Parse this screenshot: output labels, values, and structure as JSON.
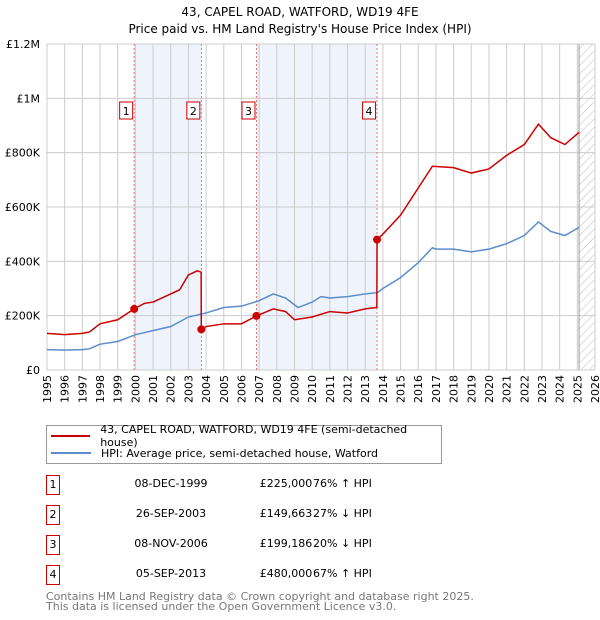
{
  "title": "43, CAPEL ROAD, WATFORD, WD19 4FE",
  "subtitle": "Price paid vs. HM Land Registry's House Price Index (HPI)",
  "colors": {
    "property": "#cc0000",
    "hpi": "#5b8ccc",
    "shade": "#eef3fc"
  },
  "chart_data": {
    "type": "line",
    "title": "43, CAPEL ROAD, WATFORD, WD19 4FE",
    "xlim": [
      1995,
      2026
    ],
    "ylim": [
      0,
      1200000
    ],
    "yticks": [
      {
        "v": 0,
        "label": "£0"
      },
      {
        "v": 200000,
        "label": "£200K"
      },
      {
        "v": 400000,
        "label": "£400K"
      },
      {
        "v": 600000,
        "label": "£600K"
      },
      {
        "v": 800000,
        "label": "£800K"
      },
      {
        "v": 1000000,
        "label": "£1M"
      },
      {
        "v": 1200000,
        "label": "£1.2M"
      }
    ],
    "xticks": [
      "1995",
      "1996",
      "1997",
      "1998",
      "1999",
      "2000",
      "2001",
      "2002",
      "2003",
      "2004",
      "2005",
      "2006",
      "2007",
      "2008",
      "2009",
      "2010",
      "2011",
      "2012",
      "2013",
      "2014",
      "2015",
      "2016",
      "2017",
      "2018",
      "2019",
      "2020",
      "2021",
      "2022",
      "2023",
      "2024",
      "2025",
      "2026"
    ],
    "data_end": 2025.1,
    "series": [
      {
        "name": "43, CAPEL ROAD, WATFORD, WD19 4FE (semi-detached house)",
        "color": "#cc0000",
        "x": [
          1995,
          1996,
          1997,
          1997.4,
          1998,
          1999,
          1999.93,
          2000.5,
          2001,
          2002,
          2002.5,
          2003,
          2003.5,
          2003.72,
          2003.73,
          2004,
          2005,
          2006,
          2006.85,
          2007.8,
          2008.5,
          2009,
          2010,
          2011,
          2012,
          2013,
          2013.66,
          2013.67,
          2014,
          2015,
          2016,
          2016.8,
          2018,
          2019,
          2020,
          2021,
          2022,
          2022.8,
          2023.5,
          2024.3,
          2025.1
        ],
        "y": [
          135000,
          130000,
          135000,
          140000,
          170000,
          185000,
          225000,
          245000,
          250000,
          280000,
          295000,
          350000,
          365000,
          360000,
          149663,
          160000,
          170000,
          170000,
          199186,
          225000,
          215000,
          185000,
          195000,
          215000,
          210000,
          225000,
          230000,
          480000,
          500000,
          570000,
          670000,
          750000,
          745000,
          725000,
          740000,
          790000,
          830000,
          905000,
          855000,
          830000,
          875000
        ]
      },
      {
        "name": "HPI: Average price, semi-detached house, Watford",
        "color": "#5b8ccc",
        "x": [
          1995,
          1996,
          1997,
          1997.4,
          1998,
          1999,
          2000,
          2001,
          2002,
          2003,
          2004,
          2005,
          2006,
          2007,
          2007.8,
          2008.5,
          2009.2,
          2010,
          2010.5,
          2011,
          2012,
          2013,
          2013.7,
          2014,
          2015,
          2016,
          2016.8,
          2017,
          2018,
          2019,
          2020,
          2021,
          2022,
          2022.8,
          2023.5,
          2024.3,
          2025.1
        ],
        "y": [
          75000,
          73000,
          75000,
          78000,
          95000,
          105000,
          130000,
          145000,
          160000,
          195000,
          210000,
          230000,
          235000,
          255000,
          280000,
          265000,
          230000,
          250000,
          270000,
          265000,
          270000,
          280000,
          285000,
          300000,
          340000,
          395000,
          450000,
          445000,
          445000,
          435000,
          445000,
          465000,
          495000,
          545000,
          510000,
          495000,
          525000
        ]
      }
    ],
    "sales": [
      {
        "num": "1",
        "x": 1999.93,
        "price": 225000
      },
      {
        "num": "2",
        "x": 2003.73,
        "price": 149663
      },
      {
        "num": "3",
        "x": 2006.85,
        "price": 199186
      },
      {
        "num": "4",
        "x": 2013.67,
        "price": 480000
      }
    ]
  },
  "legend": {
    "property": "43, CAPEL ROAD, WATFORD, WD19 4FE (semi-detached house)",
    "hpi": "HPI: Average price, semi-detached house, Watford"
  },
  "table": [
    {
      "num": "1",
      "date": "08-DEC-1999",
      "price": "£225,000",
      "hpi": "76% ↑ HPI"
    },
    {
      "num": "2",
      "date": "26-SEP-2003",
      "price": "£149,663",
      "hpi": "27% ↓ HPI"
    },
    {
      "num": "3",
      "date": "08-NOV-2006",
      "price": "£199,186",
      "hpi": "20% ↓ HPI"
    },
    {
      "num": "4",
      "date": "05-SEP-2013",
      "price": "£480,000",
      "hpi": "67% ↑ HPI"
    }
  ],
  "footer": [
    "Contains HM Land Registry data © Crown copyright and database right 2025.",
    "This data is licensed under the Open Government Licence v3.0."
  ]
}
